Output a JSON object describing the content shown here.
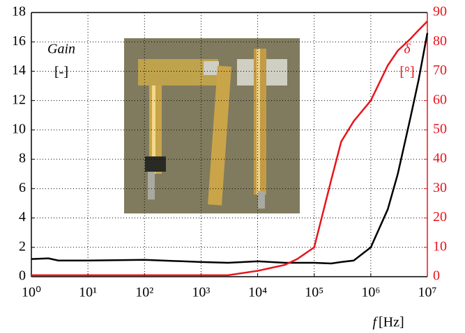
{
  "chart_data": {
    "type": "line",
    "xscale": "log",
    "y_label": "Gain",
    "y_unit": "[-]",
    "y2_label": "δ",
    "y2_unit": "[°]",
    "x_label": "f",
    "x_unit": "[Hz]",
    "x": [
      1,
      2,
      3,
      10,
      100,
      1000,
      3000,
      10000,
      30000,
      50000,
      100000,
      200000,
      300000,
      500000,
      1000000,
      2000000,
      3000000,
      5000000,
      7000000,
      10000000
    ],
    "series": [
      {
        "name": "Gain",
        "color": "#000000",
        "axis": "y",
        "values": [
          1.2,
          1.25,
          1.1,
          1.1,
          1.15,
          1.0,
          0.95,
          1.05,
          0.95,
          0.95,
          0.95,
          0.9,
          1.0,
          1.1,
          2.0,
          4.6,
          7,
          10.8,
          13.4,
          16.6
        ]
      },
      {
        "name": "δ",
        "color": "#e8141b",
        "axis": "y2",
        "values": [
          0.5,
          0.5,
          0.5,
          0.5,
          0.5,
          0.5,
          0.5,
          2,
          4,
          6,
          10,
          33,
          46,
          53,
          60,
          72,
          77,
          81,
          84,
          87
        ]
      }
    ],
    "xlim": [
      1,
      10000000
    ],
    "xticks": [
      {
        "value": 1,
        "label": "10⁰"
      },
      {
        "value": 10,
        "label": "10¹"
      },
      {
        "value": 100,
        "label": "10²"
      },
      {
        "value": 1000,
        "label": "10³"
      },
      {
        "value": 10000,
        "label": "10⁴"
      },
      {
        "value": 100000,
        "label": "10⁵"
      },
      {
        "value": 1000000,
        "label": "10⁶"
      },
      {
        "value": 10000000,
        "label": "10⁷"
      }
    ],
    "ylim": [
      0,
      18
    ],
    "yticks": [
      0,
      2,
      4,
      6,
      8,
      10,
      12,
      14,
      16,
      18
    ],
    "y2lim": [
      0,
      90
    ],
    "y2ticks": [
      0,
      10,
      20,
      30,
      40,
      50,
      60,
      70,
      80,
      90
    ],
    "grid": true,
    "y2color": "#e8141b"
  }
}
